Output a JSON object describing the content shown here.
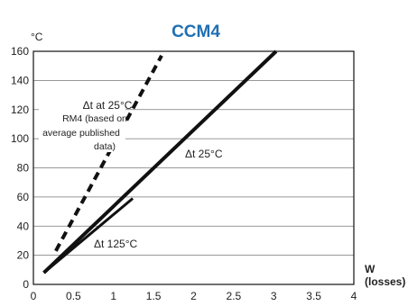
{
  "chart_data": {
    "type": "line",
    "title": "CCM4",
    "ylabel": "°C",
    "xlabel": "W",
    "xlabel_sub": "(losses)",
    "xlim": [
      0,
      4
    ],
    "ylim": [
      0,
      160
    ],
    "x_ticks": [
      "0",
      "0.5",
      "1",
      "1.5",
      "2",
      "2.5",
      "3",
      "3.5",
      "4"
    ],
    "y_ticks": [
      "0",
      "20",
      "40",
      "60",
      "80",
      "100",
      "120",
      "140",
      "160"
    ],
    "grid": "horizontal",
    "series": [
      {
        "name": "Δt at 25°C",
        "style": "dashed",
        "color": "#111111",
        "x": [
          0.28,
          1.6
        ],
        "y": [
          23,
          157
        ]
      },
      {
        "name": "Δt 25°C",
        "style": "solid",
        "color": "#111111",
        "x": [
          0.13,
          3.03
        ],
        "y": [
          8,
          160
        ]
      },
      {
        "name": "Δt 125°C",
        "style": "solid",
        "color": "#111111",
        "x": [
          0.13,
          1.24
        ],
        "y": [
          8,
          59
        ]
      }
    ],
    "annotations": {
      "dashed_label": "Δt  at 25°C",
      "dashed_note": [
        "RM4 (based on",
        "average published",
        "data)"
      ],
      "solid25_label": "Δt 25°C",
      "solid125_label": "Δt 125°C"
    }
  }
}
